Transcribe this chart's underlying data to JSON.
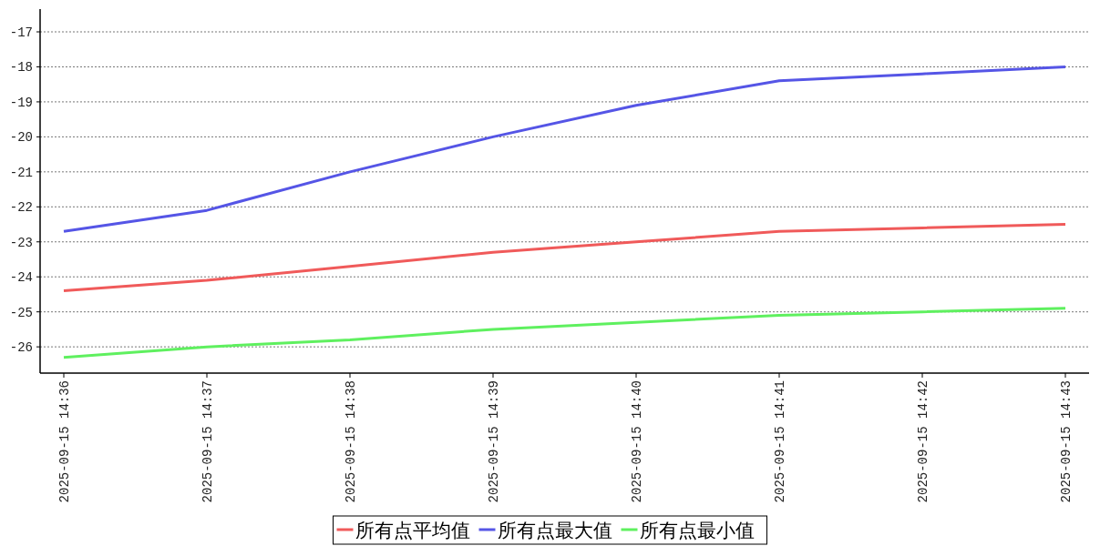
{
  "chart_data": {
    "type": "line",
    "categories": [
      "2025-09-15 14:36",
      "2025-09-15 14:37",
      "2025-09-15 14:38",
      "2025-09-15 14:39",
      "2025-09-15 14:40",
      "2025-09-15 14:41",
      "2025-09-15 14:42",
      "2025-09-15 14:43"
    ],
    "series": [
      {
        "name": "所有点平均值",
        "color": "#f05a5a",
        "values": [
          -24.4,
          -24.1,
          -23.7,
          -23.3,
          -23.0,
          -22.7,
          -22.6,
          -22.5
        ]
      },
      {
        "name": "所有点最大值",
        "color": "#5555e6",
        "values": [
          -22.7,
          -22.1,
          -21.0,
          -20.0,
          -19.1,
          -18.4,
          -18.2,
          -18.0
        ]
      },
      {
        "name": "所有点最小值",
        "color": "#5ff05f",
        "values": [
          -26.3,
          -26.0,
          -25.8,
          -25.5,
          -25.3,
          -25.1,
          -25.0,
          -24.9
        ]
      }
    ],
    "ylim": [
      -26.75,
      -16.35
    ],
    "yticks": [
      -26,
      -25,
      -24,
      -23,
      -22,
      -21,
      -20,
      -19,
      -18,
      -17
    ],
    "grid": "y",
    "legend": "bottom",
    "marker": "none",
    "line_style": "solid"
  }
}
